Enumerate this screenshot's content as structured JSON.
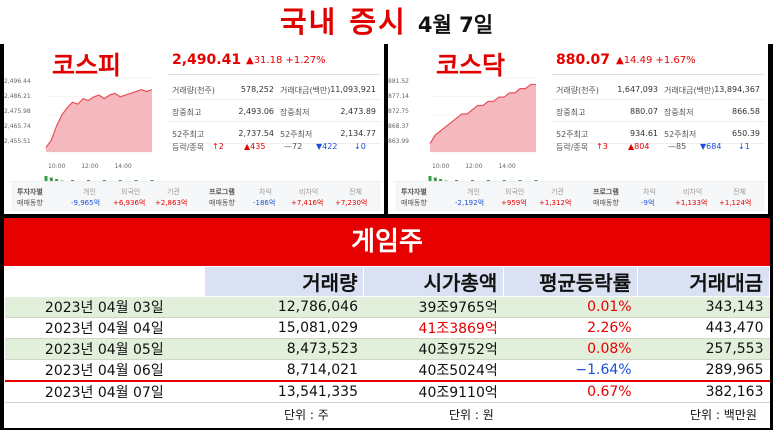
{
  "header": {
    "title": "국내 증시",
    "date": "4월 7일"
  },
  "kospi": {
    "name": "코스피",
    "price": "2,490.41",
    "change": "▲31.18",
    "change_pct": "+1.27%",
    "y_ticks": [
      "2,496.44",
      "2,486.21",
      "2,475.98",
      "2,465.74",
      "2,455.51"
    ],
    "x_ticks": [
      "10:00",
      "12:00",
      "14:00"
    ],
    "stats": [
      {
        "l1": "거래량(천주)",
        "v1": "578,252",
        "l2": "거래대금(백만)",
        "v2": "11,093,921"
      },
      {
        "l1": "장중최고",
        "v1": "2,493.06",
        "l2": "장중최저",
        "v2": "2,473.89"
      },
      {
        "l1": "52주최고",
        "v1": "2,737.54",
        "l2": "52주최저",
        "v2": "2,134.77"
      }
    ],
    "breadth": {
      "label": "등락/종목",
      "upper": "2",
      "up": "435",
      "flat": "72",
      "down": "422",
      "lower": "0"
    },
    "flows": {
      "label1": "투자자별",
      "label2": "매매동향",
      "individual_label": "개인",
      "individual": "-9,965억",
      "foreign_label": "외국인",
      "foreign": "+6,936억",
      "inst_label": "기관",
      "inst": "+2,863억",
      "prog_label1": "프로그램",
      "prog_label2": "매매동향",
      "arb_label": "차익",
      "arb": "-186억",
      "nonarb_label": "비차익",
      "nonarb": "+7,416억",
      "total_label": "전체",
      "total": "+7,230억"
    },
    "series": [
      2458,
      2462,
      2470,
      2476,
      2480,
      2483,
      2482,
      2485,
      2484,
      2486,
      2487,
      2485,
      2487,
      2488,
      2486,
      2487,
      2488,
      2489,
      2490,
      2489,
      2490
    ]
  },
  "kosdaq": {
    "name": "코스닥",
    "price": "880.07",
    "change": "▲14.49",
    "change_pct": "+1.67%",
    "y_ticks": [
      "881.52",
      "877.14",
      "872.75",
      "868.37",
      "863.99"
    ],
    "x_ticks": [
      "10:00",
      "12:00",
      "14:00"
    ],
    "stats": [
      {
        "l1": "거래량(천주)",
        "v1": "1,647,093",
        "l2": "거래대금(백만)",
        "v2": "13,894,367"
      },
      {
        "l1": "장중최고",
        "v1": "880.07",
        "l2": "장중최저",
        "v2": "866.58"
      },
      {
        "l1": "52주최고",
        "v1": "934.61",
        "l2": "52주최저",
        "v2": "650.39"
      }
    ],
    "breadth": {
      "label": "등락/종목",
      "upper": "3",
      "up": "804",
      "flat": "85",
      "down": "684",
      "lower": "1"
    },
    "flows": {
      "label1": "투자자별",
      "label2": "매매동향",
      "individual_label": "개인",
      "individual": "-2,192억",
      "foreign_label": "외국인",
      "foreign": "+959억",
      "inst_label": "기관",
      "inst": "+1,312억",
      "prog_label1": "프로그램",
      "prog_label2": "매매동향",
      "arb_label": "차익",
      "arb": "-9억",
      "nonarb_label": "비차익",
      "nonarb": "+1,133억",
      "total_label": "전체",
      "total": "+1,124억"
    },
    "series": [
      866,
      868,
      869,
      870,
      871,
      872,
      873,
      873,
      874,
      875,
      875,
      876,
      876,
      877,
      877,
      878,
      878,
      879,
      879,
      880,
      880
    ]
  },
  "game": {
    "title": "게임주",
    "columns": [
      "",
      "거래량",
      "시가총액",
      "평균등락률",
      "거래대금"
    ],
    "rows": [
      {
        "date": "2023년 04월 03일",
        "volume": "12,786,046",
        "mcap": "39조9765억",
        "avg": "0.01%",
        "amount": "343,143",
        "avg_class": "pos",
        "mcap_class": ""
      },
      {
        "date": "2023년 04월 04일",
        "volume": "15,081,029",
        "mcap": "41조3869억",
        "avg": "2.26%",
        "amount": "443,470",
        "avg_class": "pos",
        "mcap_class": "hl"
      },
      {
        "date": "2023년 04월 05일",
        "volume": "8,473,523",
        "mcap": "40조9752억",
        "avg": "0.08%",
        "amount": "257,553",
        "avg_class": "pos",
        "mcap_class": ""
      },
      {
        "date": "2023년 04월 06일",
        "volume": "8,714,021",
        "mcap": "40조5024억",
        "avg": "−1.64%",
        "amount": "289,965",
        "avg_class": "neg",
        "mcap_class": ""
      },
      {
        "date": "2023년 04월 07일",
        "volume": "13,541,335",
        "mcap": "40조9110억",
        "avg": "0.67%",
        "amount": "382,163",
        "avg_class": "pos",
        "mcap_class": ""
      }
    ],
    "units": {
      "volume": "단위 : 주",
      "mcap": "단위 : 원",
      "amount": "단위 : 백만원"
    }
  }
}
